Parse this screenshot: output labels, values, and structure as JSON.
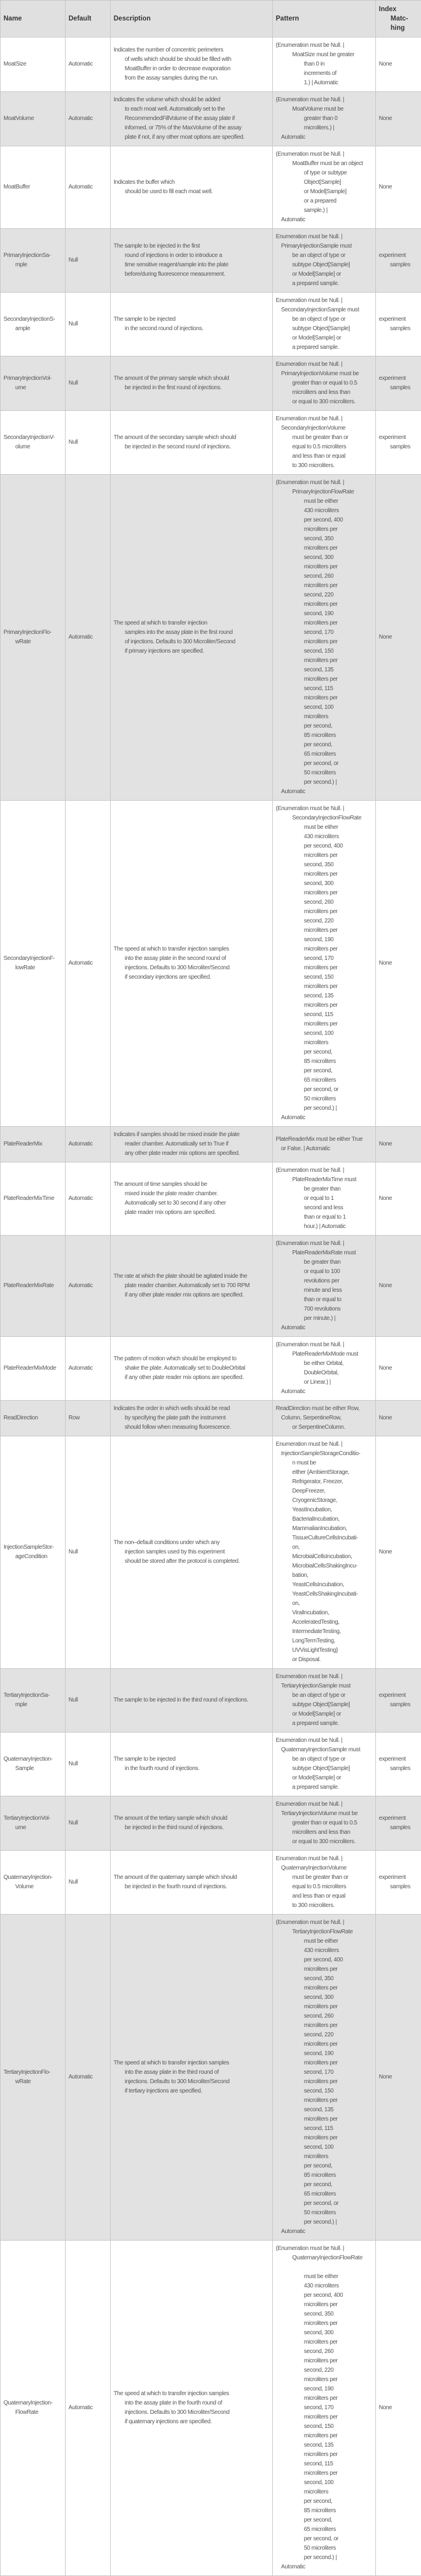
{
  "header": {
    "name": "Name",
    "default": "Default",
    "description": "Description",
    "pattern": "Pattern",
    "index_matching": [
      "Index",
      "Matc-",
      "hing"
    ]
  },
  "colors": {
    "header_bg": "#e0e0e0",
    "alt_row_bg": "#e2e2e2",
    "border": "#c6c6c6",
    "text": "#555555"
  },
  "rows": [
    {
      "name": [
        "MoatSize"
      ],
      "default": "Automatic",
      "description": [
        "Indicates the number of concentric perimeters",
        "of wells which should be should be filled with",
        "MoatBuffer in order to decrease evaporation",
        "from the assay samples during the run."
      ],
      "pattern": [
        "(Enumeration must be Null. |",
        "MoatSize must be greater",
        "than 0 in",
        "increments of",
        "1.) | Automatic"
      ],
      "index": [
        "None"
      ]
    },
    {
      "name": [
        "MoatVolume"
      ],
      "default": "Automatic",
      "description": [
        "Indicates the volume which should be added",
        "to each moat well.  Automatically set to the",
        "RecommendedFillVolume of the assay plate if",
        "informed, or 75% of the MaxVolume of the assay",
        "plate if not, if any other moat options are specified."
      ],
      "pattern": [
        "(Enumeration must be Null. |",
        "MoatVolume must be",
        "greater than 0",
        "microliters.) |",
        "Automatic"
      ],
      "index": [
        "None"
      ]
    },
    {
      "name": [
        "MoatBuffer"
      ],
      "default": "Automatic",
      "description": [
        "Indicates the buffer which",
        "should be used to fill each moat well."
      ],
      "pattern": [
        "(Enumeration must be Null. |",
        "MoatBuffer must be an object",
        "of type or subtype",
        "Object[Sample]",
        "or Model[Sample]",
        "or a prepared",
        "sample.) |",
        "Automatic"
      ],
      "index": [
        "None"
      ]
    },
    {
      "name": [
        "PrimaryInjectionSa-",
        "mple"
      ],
      "default": "Null",
      "description": [
        "The sample to be injected in the first",
        "round of injections in order to introduce a",
        "time sensitive reagent/sample into the plate",
        "before/during fluorescence measurement."
      ],
      "pattern": [
        "Enumeration must be Null. |",
        "PrimaryInjectionSample must",
        "be an object of type or",
        "subtype Object[Sample]",
        "or Model[Sample] or",
        "a prepared sample."
      ],
      "index": [
        "experiment",
        "samples"
      ]
    },
    {
      "name": [
        "SecondaryInjectionS-",
        "ample"
      ],
      "default": "Null",
      "description": [
        "The sample to be injected",
        "in the second round of injections."
      ],
      "pattern": [
        "Enumeration must be Null. |",
        "SecondaryInjectionSample must",
        "be an object of type or",
        "subtype Object[Sample]",
        "or Model[Sample] or",
        "a prepared sample."
      ],
      "index": [
        "experiment",
        "samples"
      ]
    },
    {
      "name": [
        "PrimaryInjectionVol-",
        "ume"
      ],
      "default": "Null",
      "description": [
        "The amount of the primary sample which should",
        "be injected in the first round of injections."
      ],
      "pattern": [
        "Enumeration must be Null. |",
        "PrimaryInjectionVolume must be",
        "greater than or equal to 0.5",
        "microliters and less than",
        "or equal to 300 microliters."
      ],
      "index": [
        "experiment",
        "samples"
      ]
    },
    {
      "name": [
        "SecondaryInjectionV-",
        "olume"
      ],
      "default": "Null",
      "description": [
        "The amount of the secondary sample which should",
        "be injected in the second round of injections."
      ],
      "pattern": [
        "Enumeration must be Null. |",
        "SecondaryInjectionVolume",
        "must be greater than or",
        "equal to 0.5 microliters",
        "and less than or equal",
        "to 300 microliters."
      ],
      "index": [
        "experiment",
        "samples"
      ]
    },
    {
      "name": [
        "PrimaryInjectionFlo-",
        "wRate"
      ],
      "default": "Automatic",
      "description": [
        "The speed at which to transfer injection",
        "samples into the assay plate in the first round",
        "of injections.  Defaults to 300 Microliter/Second",
        "if primary injections are specified."
      ],
      "pattern": [
        "(Enumeration must be Null. |",
        "PrimaryInjectionFlowRate",
        "must be either",
        "430 microliters",
        "per second, 400",
        "microliters per",
        "second, 350",
        "microliters per",
        "second, 300",
        "microliters per",
        "second, 260",
        "microliters per",
        "second, 220",
        "microliters per",
        "second, 190",
        "microliters per",
        "second, 170",
        "microliters per",
        "second, 150",
        "microliters per",
        "second, 135",
        "microliters per",
        "second, 115",
        "microliters per",
        "second, 100",
        "microliters",
        "per second,",
        "85 microliters",
        "per second,",
        "65 microliters",
        "per second, or",
        "50 microliters",
        "per second.) |",
        "Automatic"
      ],
      "index": [
        "None"
      ]
    },
    {
      "name": [
        "SecondaryInjectionF-",
        "lowRate"
      ],
      "default": "Automatic",
      "description": [
        "The speed at which to transfer injection samples",
        "into the assay plate in the second round of",
        "injections.  Defaults to 300 Microliter/Second",
        "if secondary injections are specified."
      ],
      "pattern": [
        "(Enumeration must be Null. |",
        "SecondaryInjectionFlowRate",
        "must be either",
        "430 microliters",
        "per second, 400",
        "microliters per",
        "second, 350",
        "microliters per",
        "second, 300",
        "microliters per",
        "second, 260",
        "microliters per",
        "second, 220",
        "microliters per",
        "second, 190",
        "microliters per",
        "second, 170",
        "microliters per",
        "second, 150",
        "microliters per",
        "second, 135",
        "microliters per",
        "second, 115",
        "microliters per",
        "second, 100",
        "microliters",
        "per second,",
        "85 microliters",
        "per second,",
        "65 microliters",
        "per second, or",
        "50 microliters",
        "per second.) |",
        "Automatic"
      ],
      "index": [
        "None"
      ]
    },
    {
      "name": [
        "PlateReaderMix"
      ],
      "default": "Automatic",
      "description": [
        "Indicates if samples should be mixed inside the plate",
        "reader chamber.  Automatically set to True if",
        "any other plate reader mix options are specified."
      ],
      "pattern": [
        "PlateReaderMix must be either True",
        "or False. | Automatic"
      ],
      "index": [
        "None"
      ]
    },
    {
      "name": [
        "PlateReaderMixTime"
      ],
      "default": "Automatic",
      "description": [
        "The amount of time samples should be",
        "mixed inside the plate reader chamber.",
        "Automatically set to 30 second if any other",
        "plate reader mix options are specified."
      ],
      "pattern": [
        "(Enumeration must be Null. |",
        "PlateReaderMixTime must",
        "be greater than",
        "or equal to 1",
        "second and less",
        "than or equal to 1",
        "hour.) | Automatic"
      ],
      "index": [
        "None"
      ]
    },
    {
      "name": [
        "PlateReaderMixRate"
      ],
      "default": "Automatic",
      "description": [
        "The rate at which the plate should be agitated inside the",
        "plate reader chamber.  Automatically set to 700 RPM",
        "if any other plate reader mix options are specified."
      ],
      "pattern": [
        "(Enumeration must be Null. |",
        "PlateReaderMixRate must",
        "be greater than",
        "or equal to 100",
        "revolutions per",
        "minute and less",
        "than or equal to",
        "700 revolutions",
        "per minute.) |",
        "Automatic"
      ],
      "index": [
        "None"
      ]
    },
    {
      "name": [
        "PlateReaderMixMode"
      ],
      "default": "Automatic",
      "description": [
        "The pattern of motion which should be employed to",
        "shake the plate.  Automatically set to DoubleOrbital",
        "if any other plate reader mix options are specified."
      ],
      "pattern": [
        "(Enumeration must be Null. |",
        "PlateReaderMixMode must",
        "be either Orbital,",
        "DoubleOrbital,",
        "or Linear.) |",
        "Automatic"
      ],
      "index": [
        "None"
      ]
    },
    {
      "name": [
        "ReadDirection"
      ],
      "default": "Row",
      "description": [
        "Indicates the order in which wells should be read",
        "by specifying the plate path the instrument",
        "should follow when measuring fluorescence."
      ],
      "pattern": [
        "ReadDirection must be either Row,",
        "Column, SerpentineRow,",
        "or SerpentineColumn."
      ],
      "index": [
        "None"
      ]
    },
    {
      "name": [
        "InjectionSampleStor-",
        "ageCondition"
      ],
      "default": "Null",
      "description": [
        "The non–default conditions under which any",
        "injection samples used by this experiment",
        "should be stored after the protocol is completed."
      ],
      "pattern": [
        "Enumeration must be Null. |",
        "InjectionSampleStorageConditio-",
        "n must be",
        "either {AmbientStorage,",
        "Refrigerator, Freezer,",
        "DeepFreezer,",
        "CryogenicStorage,",
        "YeastIncubation,",
        "BacterialIncubation,",
        "MammalianIncubation,",
        "TissueCultureCellsIncubati-",
        "on,",
        "MicrobialCellsIncubation,",
        "MicrobialCellsShakingIncu-",
        "bation,",
        "YeastCellsIncubation,",
        "YeastCellsShakingIncubati-",
        "on,",
        "ViralIncubation,",
        "AcceleratedTesting,",
        "IntermediateTesting,",
        "LongTermTesting,",
        "UVVisLightTesting}",
        "or Disposal."
      ],
      "index": [
        "None"
      ]
    },
    {
      "name": [
        "TertiaryInjectionSa-",
        "mple"
      ],
      "default": "Null",
      "description": [
        "The sample to be injected in the third round of injections."
      ],
      "pattern": [
        "Enumeration must be Null. |",
        "TertiaryInjectionSample must",
        "be an object of type or",
        "subtype Object[Sample]",
        "or Model[Sample] or",
        "a prepared sample."
      ],
      "index": [
        "experiment",
        "samples"
      ]
    },
    {
      "name": [
        "QuaternaryInjection-",
        "Sample"
      ],
      "default": "Null",
      "description": [
        "The sample to be injected",
        "in the fourth round of injections."
      ],
      "pattern": [
        "Enumeration must be Null. |",
        "QuaternaryInjectionSample must",
        "be an object of type or",
        "subtype Object[Sample]",
        "or Model[Sample] or",
        "a prepared sample."
      ],
      "index": [
        "experiment",
        "samples"
      ]
    },
    {
      "name": [
        "TertiaryInjectionVol-",
        "ume"
      ],
      "default": "Null",
      "description": [
        "The amount of the tertiary sample which should",
        "be injected in the third round of injections."
      ],
      "pattern": [
        "Enumeration must be Null. |",
        "TertiaryInjectionVolume must be",
        "greater than or equal to 0.5",
        "microliters and less than",
        "or equal to 300 microliters."
      ],
      "index": [
        "experiment",
        "samples"
      ]
    },
    {
      "name": [
        "QuaternaryInjection-",
        "Volume"
      ],
      "default": "Null",
      "description": [
        "The amount of the quaternary sample which should",
        "be injected in the fourth round of injections."
      ],
      "pattern": [
        "Enumeration must be Null. |",
        "QuaternaryInjectionVolume",
        "must be greater than or",
        "equal to 0.5 microliters",
        "and less than or equal",
        "to 300 microliters."
      ],
      "index": [
        "experiment",
        "samples"
      ]
    },
    {
      "name": [
        "TertiaryInjectionFlo-",
        "wRate"
      ],
      "default": "Automatic",
      "description": [
        "The speed at which to transfer injection samples",
        "into the assay plate in the third round of",
        "injections.  Defaults to 300 Microliter/Second",
        "if tertiary injections are specified."
      ],
      "pattern": [
        "(Enumeration must be Null. |",
        "TertiaryInjectionFlowRate",
        "must be either",
        "430 microliters",
        "per second, 400",
        "microliters per",
        "second, 350",
        "microliters per",
        "second, 300",
        "microliters per",
        "second, 260",
        "microliters per",
        "second, 220",
        "microliters per",
        "second, 190",
        "microliters per",
        "second, 170",
        "microliters per",
        "second, 150",
        "microliters per",
        "second, 135",
        "microliters per",
        "second, 115",
        "microliters per",
        "second, 100",
        "microliters",
        "per second,",
        "85 microliters",
        "per second,",
        "65 microliters",
        "per second, or",
        "50 microliters",
        "per second.) |",
        "Automatic"
      ],
      "index": [
        "None"
      ]
    },
    {
      "name": [
        "QuaternaryInjection-",
        "FlowRate"
      ],
      "default": "Automatic",
      "description": [
        "The speed at which to transfer injection samples",
        "into the assay plate in the fourth round of",
        "injections.  Defaults to 300 Microliter/Second",
        "if quaternary injections are specified."
      ],
      "pattern": [
        "(Enumeration must be Null. |",
        "QuaternaryInjectionFlowRate",
        "",
        "must be either",
        "430 microliters",
        "per second, 400",
        "microliters per",
        "second, 350",
        "microliters per",
        "second, 300",
        "microliters per",
        "second, 260",
        "microliters per",
        "second, 220",
        "microliters per",
        "second, 190",
        "microliters per",
        "second, 170",
        "microliters per",
        "second, 150",
        "microliters per",
        "second, 135",
        "microliters per",
        "second, 115",
        "microliters per",
        "second, 100",
        "microliters",
        "per second,",
        "85 microliters",
        "per second,",
        "65 microliters",
        "per second, or",
        "50 microliters",
        "per second.) |",
        "Automatic"
      ],
      "index": [
        "None"
      ]
    }
  ]
}
